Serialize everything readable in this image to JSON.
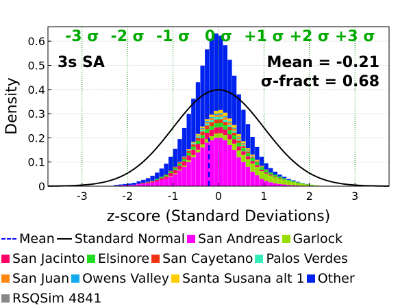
{
  "chart_data": {
    "type": "bar",
    "panel_label": "3s SA",
    "stats": {
      "mean_text": "Mean = -0.21",
      "sigma_text": "σ-fract = 0.68"
    },
    "xlabel": "z-score (Standard Deviations)",
    "ylabel": "Density",
    "xlim": [
      -3.75,
      3.75
    ],
    "ylim": [
      0,
      0.66
    ],
    "xticks": [
      -3,
      -2,
      -1,
      0,
      1,
      2,
      3
    ],
    "xtick_labels": [
      "-3",
      "-2",
      "-1",
      "0",
      "1",
      "2",
      "3"
    ],
    "yticks": [
      0,
      0.1,
      0.2,
      0.3,
      0.4,
      0.5,
      0.6
    ],
    "ytick_labels": [
      "0",
      "0.1",
      "0.2",
      "0.3",
      "0.4",
      "0.5",
      "0.6"
    ],
    "grid": true,
    "sigma_lines": [
      {
        "x": -3,
        "label": "-3 σ"
      },
      {
        "x": -2,
        "label": "-2 σ"
      },
      {
        "x": -1,
        "label": "-1 σ"
      },
      {
        "x": 0,
        "label": "0 σ"
      },
      {
        "x": 1,
        "label": "+1 σ"
      },
      {
        "x": 2,
        "label": "+2 σ"
      },
      {
        "x": 3,
        "label": "+3 σ"
      }
    ],
    "mean_line_x": -0.21,
    "normal_curve": {
      "mu": 0,
      "sigma": 1
    },
    "bin_width": 0.1,
    "bin_centers": [
      -2.75,
      -2.65,
      -2.55,
      -2.45,
      -2.35,
      -2.25,
      -2.15,
      -2.05,
      -1.95,
      -1.85,
      -1.75,
      -1.65,
      -1.55,
      -1.45,
      -1.35,
      -1.25,
      -1.15,
      -1.05,
      -0.95,
      -0.85,
      -0.75,
      -0.65,
      -0.55,
      -0.45,
      -0.35,
      -0.25,
      -0.15,
      -0.05,
      0.05,
      0.15,
      0.25,
      0.35,
      0.45,
      0.55,
      0.65,
      0.75,
      0.85,
      0.95,
      1.05,
      1.15,
      1.25,
      1.35,
      1.45,
      1.55,
      1.65,
      1.75,
      1.85,
      1.95,
      2.05,
      2.15,
      2.25,
      2.35,
      2.45,
      2.55,
      2.65,
      2.75,
      2.85
    ],
    "series": [
      {
        "name": "San Andreas",
        "color": "#ff00ff",
        "values": [
          0,
          0,
          0,
          0,
          0,
          0.002,
          0.003,
          0.004,
          0.005,
          0.006,
          0.008,
          0.01,
          0.012,
          0.015,
          0.02,
          0.025,
          0.03,
          0.04,
          0.05,
          0.065,
          0.08,
          0.1,
          0.12,
          0.14,
          0.16,
          0.18,
          0.19,
          0.2,
          0.2,
          0.19,
          0.17,
          0.15,
          0.12,
          0.1,
          0.08,
          0.06,
          0.045,
          0.03,
          0.022,
          0.016,
          0.012,
          0.009,
          0.007,
          0.005,
          0.004,
          0.003,
          0.002,
          0.001,
          0.001,
          0,
          0,
          0,
          0,
          0,
          0,
          0,
          0
        ]
      },
      {
        "name": "Garlock",
        "color": "#99dd00",
        "values": [
          0,
          0,
          0,
          0,
          0,
          0,
          0,
          0,
          0,
          0,
          0,
          0,
          0,
          0,
          0,
          0,
          0,
          0.002,
          0.003,
          0.004,
          0.005,
          0.007,
          0.009,
          0.011,
          0.013,
          0.015,
          0.017,
          0.018,
          0.02,
          0.022,
          0.024,
          0.026,
          0.028,
          0.03,
          0.032,
          0.034,
          0.034,
          0.032,
          0.03,
          0.028,
          0.025,
          0.022,
          0.019,
          0.016,
          0.013,
          0.01,
          0.008,
          0.006,
          0.004,
          0.003,
          0.002,
          0.001,
          0.001,
          0,
          0,
          0,
          0
        ]
      },
      {
        "name": "San Jacinto",
        "color": "#ff0066",
        "values": [
          0,
          0,
          0,
          0,
          0,
          0,
          0,
          0,
          0,
          0,
          0.002,
          0.003,
          0.004,
          0.005,
          0.006,
          0.008,
          0.01,
          0.012,
          0.014,
          0.016,
          0.018,
          0.02,
          0.022,
          0.024,
          0.025,
          0.026,
          0.026,
          0.025,
          0.024,
          0.022,
          0.02,
          0.018,
          0.016,
          0.014,
          0.012,
          0.01,
          0.008,
          0.006,
          0.005,
          0.004,
          0.003,
          0.002,
          0.001,
          0,
          0,
          0,
          0,
          0,
          0,
          0,
          0,
          0,
          0,
          0,
          0,
          0,
          0
        ]
      },
      {
        "name": "Elsinore",
        "color": "#22dd22",
        "values": [
          0,
          0,
          0,
          0,
          0,
          0,
          0,
          0,
          0,
          0,
          0,
          0.001,
          0.002,
          0.003,
          0.004,
          0.005,
          0.006,
          0.007,
          0.008,
          0.009,
          0.01,
          0.011,
          0.012,
          0.013,
          0.014,
          0.015,
          0.016,
          0.017,
          0.018,
          0.018,
          0.018,
          0.017,
          0.016,
          0.015,
          0.014,
          0.013,
          0.012,
          0.011,
          0.01,
          0.009,
          0.008,
          0.007,
          0.006,
          0.005,
          0.004,
          0.003,
          0.002,
          0.001,
          0.001,
          0,
          0,
          0,
          0,
          0,
          0,
          0,
          0
        ]
      },
      {
        "name": "San Cayetano",
        "color": "#ee3311",
        "values": [
          0,
          0,
          0,
          0,
          0,
          0,
          0,
          0,
          0,
          0,
          0,
          0,
          0,
          0,
          0,
          0.001,
          0.002,
          0.003,
          0.004,
          0.005,
          0.006,
          0.008,
          0.01,
          0.012,
          0.014,
          0.015,
          0.016,
          0.016,
          0.015,
          0.014,
          0.013,
          0.011,
          0.009,
          0.007,
          0.005,
          0.004,
          0.003,
          0.002,
          0.001,
          0,
          0,
          0,
          0,
          0,
          0,
          0,
          0,
          0,
          0,
          0,
          0,
          0,
          0,
          0,
          0,
          0,
          0
        ]
      },
      {
        "name": "Palos Verdes",
        "color": "#33eebb",
        "values": [
          0,
          0,
          0,
          0,
          0,
          0,
          0,
          0,
          0,
          0,
          0,
          0,
          0,
          0,
          0,
          0,
          0,
          0,
          0.001,
          0.002,
          0.003,
          0.004,
          0.005,
          0.006,
          0.007,
          0.008,
          0.009,
          0.01,
          0.01,
          0.009,
          0.008,
          0.007,
          0.006,
          0.005,
          0.004,
          0.003,
          0.002,
          0.001,
          0,
          0,
          0,
          0,
          0,
          0,
          0,
          0,
          0,
          0,
          0,
          0,
          0,
          0,
          0,
          0,
          0,
          0,
          0
        ]
      },
      {
        "name": "San Juan",
        "color": "#ff8811",
        "values": [
          0,
          0,
          0,
          0,
          0,
          0,
          0,
          0,
          0,
          0,
          0,
          0,
          0,
          0,
          0,
          0,
          0,
          0,
          0,
          0,
          0.001,
          0.002,
          0.003,
          0.004,
          0.005,
          0.006,
          0.007,
          0.008,
          0.009,
          0.01,
          0.01,
          0.009,
          0.008,
          0.006,
          0.005,
          0.004,
          0.003,
          0.002,
          0.001,
          0,
          0,
          0,
          0,
          0,
          0,
          0,
          0,
          0,
          0,
          0,
          0,
          0,
          0,
          0,
          0,
          0,
          0
        ]
      },
      {
        "name": "Owens Valley",
        "color": "#11aaee",
        "values": [
          0,
          0,
          0,
          0,
          0,
          0,
          0,
          0,
          0,
          0,
          0,
          0,
          0,
          0,
          0,
          0,
          0,
          0,
          0,
          0,
          0,
          0,
          0.001,
          0.002,
          0.003,
          0.004,
          0.005,
          0.006,
          0.006,
          0.006,
          0.005,
          0.004,
          0.003,
          0.002,
          0.001,
          0,
          0,
          0,
          0,
          0,
          0,
          0,
          0,
          0,
          0,
          0,
          0,
          0,
          0,
          0,
          0,
          0,
          0,
          0,
          0,
          0,
          0
        ]
      },
      {
        "name": "Santa Susana alt 1",
        "color": "#ffcc00",
        "values": [
          0,
          0,
          0,
          0,
          0,
          0,
          0,
          0,
          0,
          0,
          0,
          0,
          0,
          0,
          0,
          0,
          0,
          0,
          0,
          0,
          0,
          0.001,
          0.002,
          0.004,
          0.006,
          0.008,
          0.01,
          0.012,
          0.013,
          0.013,
          0.012,
          0.011,
          0.009,
          0.007,
          0.005,
          0.003,
          0.002,
          0.001,
          0,
          0,
          0,
          0,
          0,
          0,
          0,
          0,
          0,
          0,
          0,
          0,
          0,
          0,
          0,
          0,
          0,
          0,
          0
        ]
      },
      {
        "name": "Other",
        "color": "#0022ee",
        "values": [
          0,
          0,
          0,
          0,
          0,
          0.003,
          0.004,
          0.005,
          0.006,
          0.008,
          0.01,
          0.012,
          0.015,
          0.02,
          0.026,
          0.034,
          0.045,
          0.058,
          0.074,
          0.094,
          0.118,
          0.146,
          0.178,
          0.214,
          0.252,
          0.289,
          0.314,
          0.32,
          0.308,
          0.279,
          0.243,
          0.204,
          0.165,
          0.13,
          0.099,
          0.073,
          0.053,
          0.037,
          0.026,
          0.018,
          0.012,
          0.008,
          0.006,
          0.004,
          0.003,
          0.002,
          0.001,
          0.001,
          0,
          0,
          0,
          0,
          0,
          0,
          0,
          0,
          0
        ]
      },
      {
        "name": "RSQSim 4841",
        "color": "#888888",
        "values": [
          0,
          0,
          0,
          0,
          0,
          0,
          0,
          0,
          0,
          0,
          0,
          0,
          0,
          0,
          0,
          0,
          0,
          0,
          0,
          0,
          0,
          0,
          0,
          0,
          0,
          0,
          0,
          0,
          0,
          0,
          0,
          0,
          0,
          0,
          0,
          0,
          0,
          0,
          0,
          0,
          0,
          0,
          0,
          0,
          0,
          0,
          0,
          0,
          0,
          0,
          0,
          0,
          0,
          0,
          0,
          0,
          0
        ]
      }
    ],
    "legend": [
      {
        "label": "Mean",
        "kind": "dash",
        "color": "#0000ff"
      },
      {
        "label": "Standard Normal",
        "kind": "line",
        "color": "#000000"
      },
      {
        "label": "San Andreas",
        "kind": "box",
        "color": "#ff00ff"
      },
      {
        "label": "Garlock",
        "kind": "box",
        "color": "#99dd00"
      },
      {
        "label": "San Jacinto",
        "kind": "box",
        "color": "#ff0066"
      },
      {
        "label": "Elsinore",
        "kind": "box",
        "color": "#22dd22"
      },
      {
        "label": "San Cayetano",
        "kind": "box",
        "color": "#ee3311"
      },
      {
        "label": "Palos Verdes",
        "kind": "box",
        "color": "#33eebb"
      },
      {
        "label": "San Juan",
        "kind": "box",
        "color": "#ff8811"
      },
      {
        "label": "Owens Valley",
        "kind": "box",
        "color": "#11aaee"
      },
      {
        "label": "Santa Susana alt 1",
        "kind": "box",
        "color": "#ffcc00"
      },
      {
        "label": "Other",
        "kind": "box",
        "color": "#0022ee"
      },
      {
        "label": "RSQSim 4841",
        "kind": "box",
        "color": "#888888"
      }
    ],
    "legend_placement": "bottom",
    "sigma_label_color": "#00aa00"
  }
}
